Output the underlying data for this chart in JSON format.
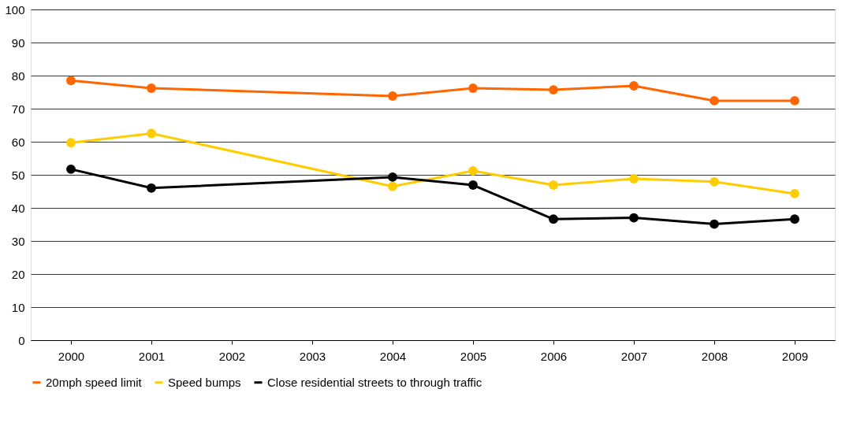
{
  "chart_data": {
    "type": "line",
    "categories": [
      "2000",
      "2001",
      "2002",
      "2003",
      "2004",
      "2005",
      "2006",
      "2007",
      "2008",
      "2009"
    ],
    "series": [
      {
        "name": "20mph speed limit",
        "color": "#ff6600",
        "values": [
          78.5,
          76.2,
          null,
          null,
          73.8,
          76.2,
          75.7,
          76.9,
          72.4,
          72.4
        ]
      },
      {
        "name": "Speed bumps",
        "color": "#ffcc00",
        "values": [
          59.7,
          62.5,
          null,
          null,
          46.5,
          51.2,
          46.9,
          48.8,
          47.9,
          44.3
        ]
      },
      {
        "name": "Close residential streets to through traffic",
        "color": "#000000",
        "values": [
          51.7,
          46.0,
          null,
          null,
          49.3,
          46.9,
          36.6,
          37.0,
          35.1,
          36.6
        ]
      }
    ],
    "ylim": [
      0,
      100
    ],
    "yticks": [
      0,
      10,
      20,
      30,
      40,
      50,
      60,
      70,
      80,
      90,
      100
    ],
    "grid": "y",
    "legend": "bottom",
    "marker": "circle",
    "line_style": "solid"
  }
}
